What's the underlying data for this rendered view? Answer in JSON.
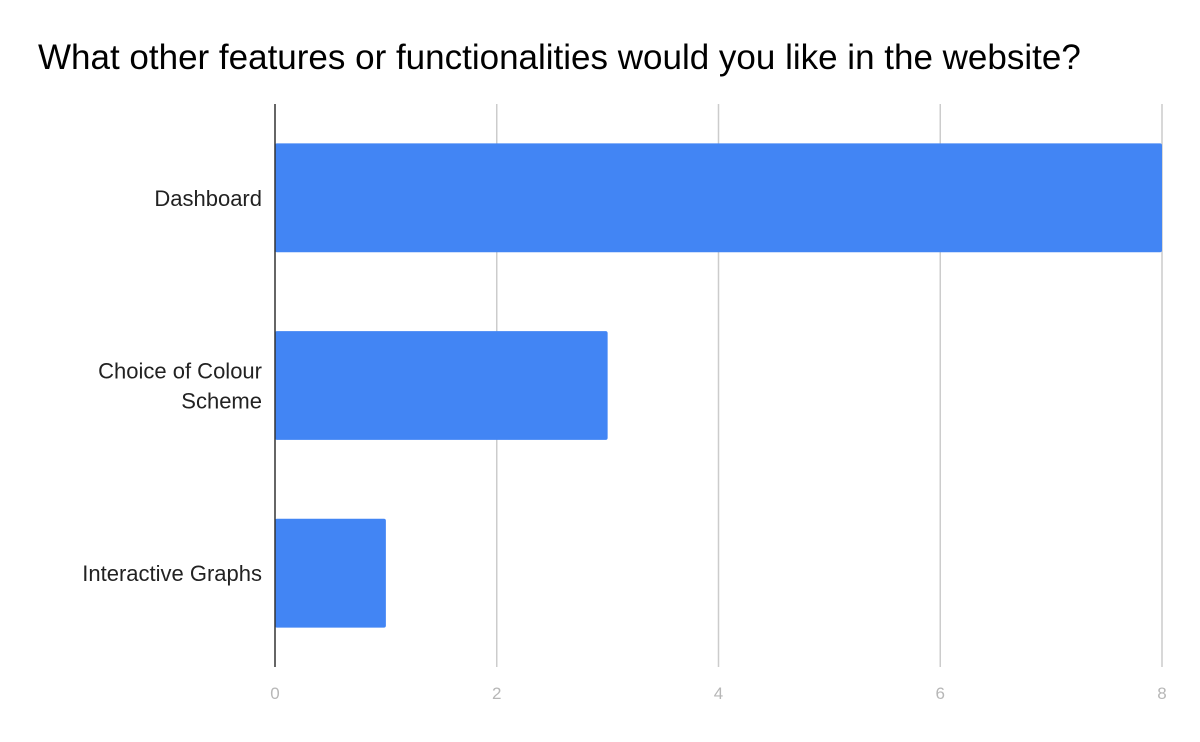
{
  "chart_data": {
    "type": "bar",
    "orientation": "horizontal",
    "title": "What other features or functionalities would you like in the website?",
    "categories": [
      [
        "Dashboard"
      ],
      [
        "Choice of Colour",
        "Scheme"
      ],
      [
        "Interactive Graphs"
      ]
    ],
    "values": [
      8,
      3,
      1
    ],
    "xlim": [
      0,
      8
    ],
    "xticks": [
      0,
      2,
      4,
      6,
      8
    ],
    "xlabel": "",
    "ylabel": "",
    "grid": true,
    "legend": "none",
    "bar_color": "#4285f4"
  }
}
